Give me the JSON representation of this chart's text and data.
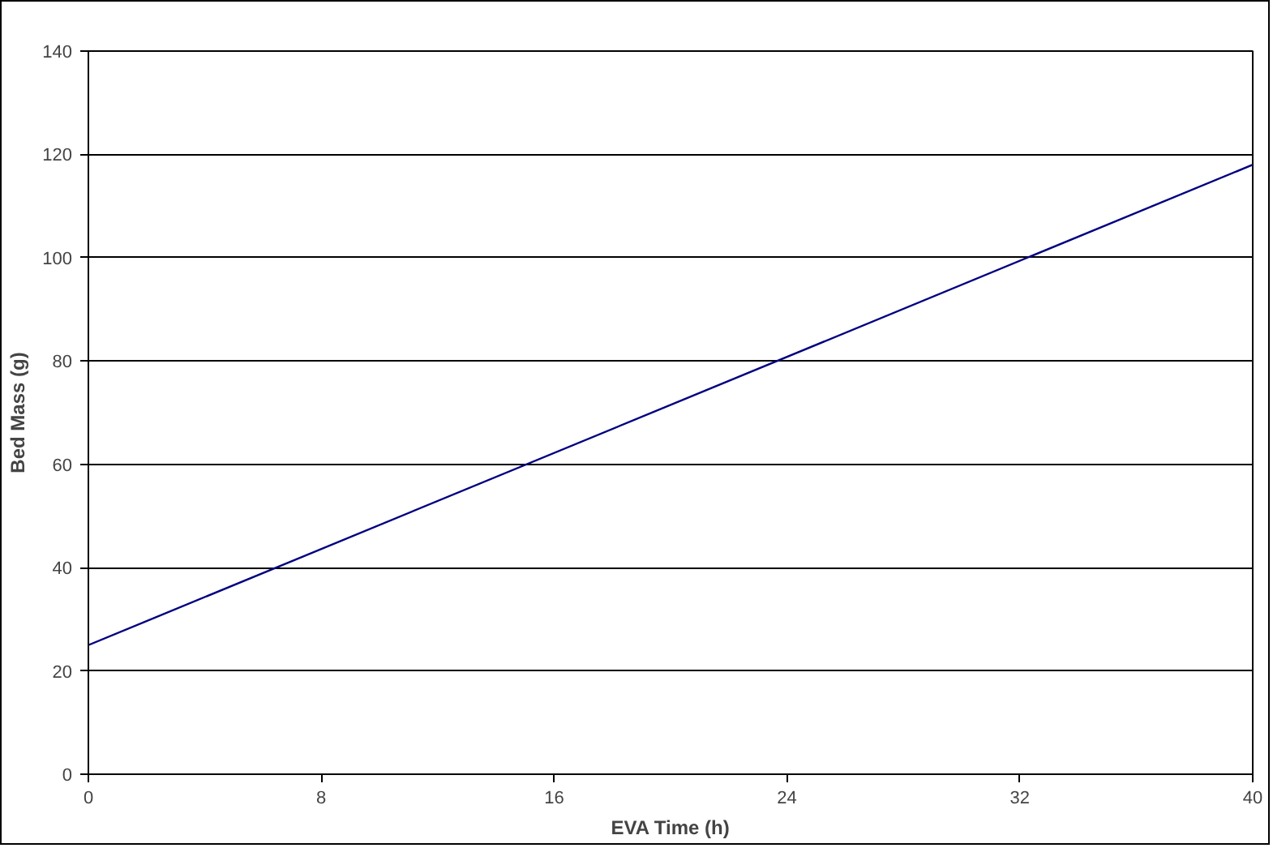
{
  "chart_data": {
    "type": "line",
    "xlabel": "EVA Time (h)",
    "ylabel": "Bed Mass (g)",
    "x": [
      0,
      40
    ],
    "series": [
      {
        "color": "#000080",
        "values": [
          25,
          118
        ]
      }
    ],
    "xlim": [
      0,
      40
    ],
    "xticks": [
      0,
      8,
      16,
      24,
      32,
      40
    ],
    "ylim": [
      0,
      140
    ],
    "yticks": [
      0,
      20,
      40,
      60,
      80,
      100,
      120,
      140
    ],
    "grid": "y",
    "marker": "none",
    "line_style": "solid"
  }
}
